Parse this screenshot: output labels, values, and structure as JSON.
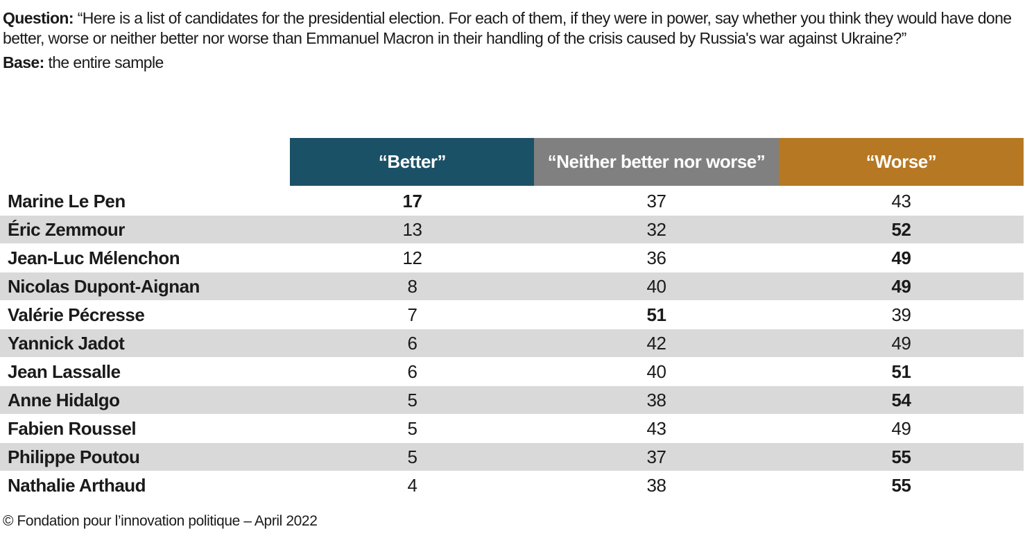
{
  "intro": {
    "question_label": "Question:",
    "question": "“Here is a list of candidates for the presidential election. For each of them, if they were in power, say whether you think they would have done better, worse or neither better nor worse than Emmanuel Macron in their handling of the crisis caused by Russia's war against Ukraine?”",
    "base_label": "Base:",
    "base": "the entire sample"
  },
  "table": {
    "columns": [
      {
        "label": "“Better”",
        "color": "#1b5166"
      },
      {
        "label": "“Neither better nor worse”",
        "color": "#808080"
      },
      {
        "label": "“Worse”",
        "color": "#b67823"
      }
    ],
    "stripe_color": "#d9d9d9",
    "rows": [
      {
        "name": "Marine Le Pen",
        "values": [
          17,
          37,
          43
        ],
        "bold": [
          0
        ]
      },
      {
        "name": "Éric Zemmour",
        "values": [
          13,
          32,
          52
        ],
        "bold": [
          2
        ]
      },
      {
        "name": "Jean-Luc Mélenchon",
        "values": [
          12,
          36,
          49
        ],
        "bold": [
          2
        ]
      },
      {
        "name": "Nicolas Dupont-Aignan",
        "values": [
          8,
          40,
          49
        ],
        "bold": [
          2
        ]
      },
      {
        "name": "Valérie Pécresse",
        "values": [
          7,
          51,
          39
        ],
        "bold": [
          1
        ]
      },
      {
        "name": "Yannick Jadot",
        "values": [
          6,
          42,
          49
        ],
        "bold": []
      },
      {
        "name": "Jean Lassalle",
        "values": [
          6,
          40,
          51
        ],
        "bold": [
          2
        ]
      },
      {
        "name": "Anne Hidalgo",
        "values": [
          5,
          38,
          54
        ],
        "bold": [
          2
        ]
      },
      {
        "name": "Fabien Roussel",
        "values": [
          5,
          43,
          49
        ],
        "bold": []
      },
      {
        "name": "Philippe Poutou",
        "values": [
          5,
          37,
          55
        ],
        "bold": [
          2
        ]
      },
      {
        "name": "Nathalie Arthaud",
        "values": [
          4,
          38,
          55
        ],
        "bold": [
          2
        ]
      }
    ]
  },
  "footer": "© Fondation pour l’innovation politique – April 2022"
}
